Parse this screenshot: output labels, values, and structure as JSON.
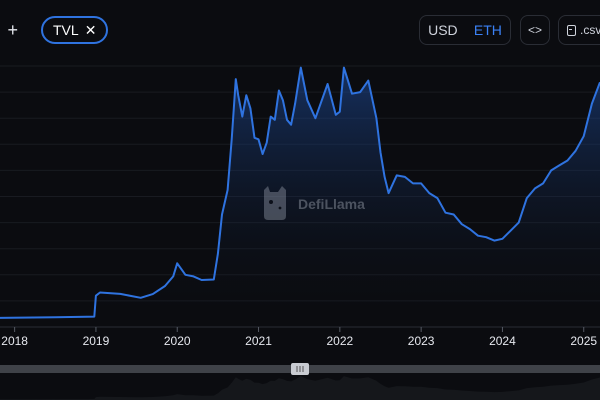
{
  "header": {
    "add_metric_label": "+",
    "active_metric": "TVL",
    "remove_icon": "close-icon",
    "denomination_options": [
      "USD",
      "ETH"
    ],
    "selected_denomination": "ETH",
    "embed_label": "<>",
    "csv_label": ".csv"
  },
  "watermark": {
    "text": "DefiLlama"
  },
  "colors": {
    "accent": "#2f73e0",
    "line": "#2f73e0",
    "selected": "#3b82f6",
    "background": "#0b0c10"
  },
  "chart_data": {
    "type": "area",
    "title": "",
    "xlabel": "",
    "ylabel": "",
    "x_tick_labels": [
      "2018",
      "2019",
      "2020",
      "2021",
      "2022",
      "2023",
      "2024",
      "2025"
    ],
    "x_unit": "year",
    "xlim": [
      2017.82,
      2025.2
    ],
    "ylim": [
      0,
      100
    ],
    "y_unit": "relative (y-axis labels not visible)",
    "grid": true,
    "series": [
      {
        "values": [
          [
            2017.82,
            3.5
          ],
          [
            2018.5,
            3.7
          ],
          [
            2018.98,
            4.0
          ],
          [
            2019.0,
            12.0
          ],
          [
            2019.05,
            13.2
          ],
          [
            2019.3,
            12.7
          ],
          [
            2019.55,
            11.2
          ],
          [
            2019.7,
            12.6
          ],
          [
            2019.85,
            15.7
          ],
          [
            2019.95,
            19.4
          ],
          [
            2020.0,
            24.4
          ],
          [
            2020.1,
            20.0
          ],
          [
            2020.2,
            19.4
          ],
          [
            2020.3,
            18.0
          ],
          [
            2020.45,
            18.2
          ],
          [
            2020.5,
            28.1
          ],
          [
            2020.55,
            43.1
          ],
          [
            2020.62,
            52.5
          ],
          [
            2020.67,
            71.9
          ],
          [
            2020.72,
            95.0
          ],
          [
            2020.75,
            88.8
          ],
          [
            2020.8,
            80.6
          ],
          [
            2020.85,
            88.8
          ],
          [
            2020.9,
            83.8
          ],
          [
            2020.95,
            72.5
          ],
          [
            2021.0,
            71.9
          ],
          [
            2021.05,
            66.3
          ],
          [
            2021.1,
            70.6
          ],
          [
            2021.15,
            80.6
          ],
          [
            2021.2,
            79.4
          ],
          [
            2021.25,
            90.6
          ],
          [
            2021.3,
            86.9
          ],
          [
            2021.35,
            79.4
          ],
          [
            2021.4,
            77.5
          ],
          [
            2021.45,
            85.6
          ],
          [
            2021.52,
            99.4
          ],
          [
            2021.6,
            86.9
          ],
          [
            2021.7,
            80.0
          ],
          [
            2021.8,
            88.8
          ],
          [
            2021.85,
            93.1
          ],
          [
            2021.95,
            81.3
          ],
          [
            2022.0,
            82.5
          ],
          [
            2022.05,
            99.4
          ],
          [
            2022.15,
            89.4
          ],
          [
            2022.25,
            90.0
          ],
          [
            2022.35,
            94.4
          ],
          [
            2022.45,
            80.0
          ],
          [
            2022.5,
            66.9
          ],
          [
            2022.55,
            57.5
          ],
          [
            2022.6,
            51.3
          ],
          [
            2022.7,
            58.1
          ],
          [
            2022.8,
            57.5
          ],
          [
            2022.9,
            55.0
          ],
          [
            2023.0,
            55.0
          ],
          [
            2023.1,
            51.3
          ],
          [
            2023.2,
            49.4
          ],
          [
            2023.3,
            43.8
          ],
          [
            2023.4,
            43.1
          ],
          [
            2023.5,
            39.4
          ],
          [
            2023.6,
            37.5
          ],
          [
            2023.7,
            35.0
          ],
          [
            2023.8,
            34.4
          ],
          [
            2023.9,
            33.1
          ],
          [
            2024.0,
            33.8
          ],
          [
            2024.1,
            36.9
          ],
          [
            2024.2,
            40.0
          ],
          [
            2024.3,
            49.4
          ],
          [
            2024.4,
            53.1
          ],
          [
            2024.5,
            55.0
          ],
          [
            2024.6,
            60.0
          ],
          [
            2024.7,
            61.9
          ],
          [
            2024.8,
            63.8
          ],
          [
            2024.9,
            67.5
          ],
          [
            2025.0,
            73.1
          ],
          [
            2025.1,
            85.6
          ],
          [
            2025.2,
            93.8
          ]
        ]
      }
    ]
  }
}
